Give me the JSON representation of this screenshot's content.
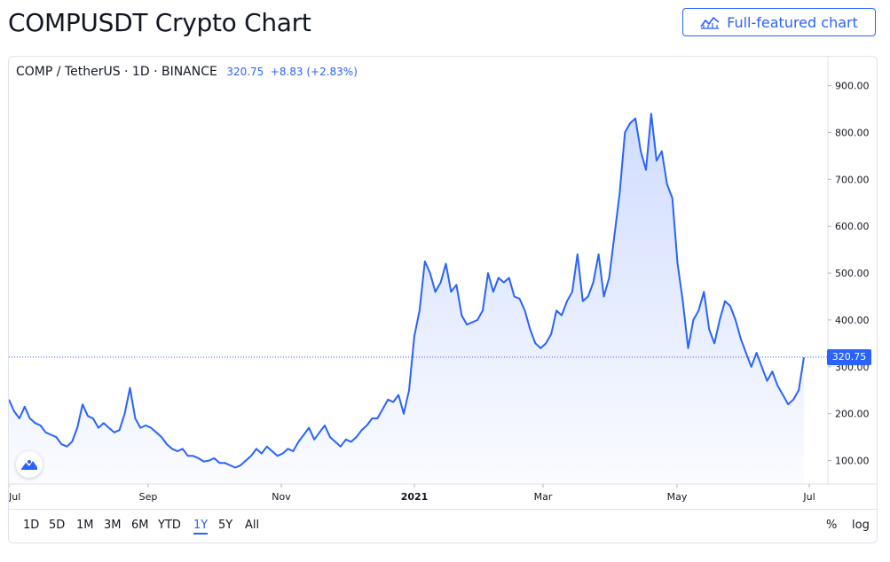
{
  "header": {
    "title": "COMPUSDT Crypto Chart",
    "full_chart_label": "Full-featured chart",
    "full_chart_icon": "chart-line-icon"
  },
  "legend": {
    "symbol": "COMP / TetherUS · 1D · BINANCE",
    "price": "320.75",
    "change": "+8.83 (+2.83%)"
  },
  "price_tag": "320.75",
  "toolbar": {
    "ranges": [
      "1D",
      "5D",
      "1M",
      "3M",
      "6M",
      "YTD",
      "1Y",
      "5Y",
      "All"
    ],
    "active_range": "1Y",
    "percent_label": "%",
    "log_label": "log"
  },
  "colors": {
    "accent": "#2962ff",
    "line": "#2962ff"
  },
  "chart_data": {
    "type": "area",
    "series": [
      {
        "values": [
          230,
          205,
          190,
          215,
          190,
          180,
          175,
          160,
          155,
          150,
          135,
          130,
          140,
          170,
          220,
          195,
          190,
          170,
          180,
          170,
          160,
          165,
          200,
          255,
          190,
          170,
          175,
          170,
          160,
          150,
          135,
          125,
          120,
          125,
          110,
          110,
          105,
          98,
          100,
          105,
          95,
          95,
          90,
          85,
          90,
          100,
          110,
          125,
          115,
          130,
          120,
          110,
          115,
          125,
          120,
          140,
          155,
          170,
          145,
          160,
          175,
          150,
          140,
          130,
          145,
          140,
          150,
          165,
          175,
          190,
          190,
          210,
          230,
          225,
          240,
          200,
          250,
          365,
          420,
          525,
          500,
          460,
          480,
          520,
          460,
          475,
          410,
          390,
          395,
          400,
          420,
          500,
          460,
          490,
          480,
          490,
          450,
          445,
          420,
          380,
          350,
          340,
          350,
          370,
          420,
          410,
          440,
          460,
          540,
          440,
          450,
          480,
          540,
          450,
          490,
          580,
          670,
          800,
          820,
          830,
          760,
          720,
          840,
          740,
          760,
          690,
          660,
          520,
          440,
          340,
          400,
          420,
          460,
          380,
          350,
          400,
          440,
          430,
          400,
          360,
          330,
          300,
          330,
          300,
          270,
          290,
          260,
          240,
          220,
          230,
          250,
          320
        ]
      }
    ],
    "x_labels": [
      "Jul",
      "Sep",
      "Nov",
      "2021",
      "Mar",
      "May",
      "Jul"
    ],
    "y_ticks": [
      "100.00",
      "200.00",
      "300.00",
      "400.00",
      "500.00",
      "600.00",
      "700.00",
      "800.00",
      "900.00"
    ],
    "ylim": [
      50,
      920
    ],
    "last_value": 320.75,
    "grid": false
  }
}
